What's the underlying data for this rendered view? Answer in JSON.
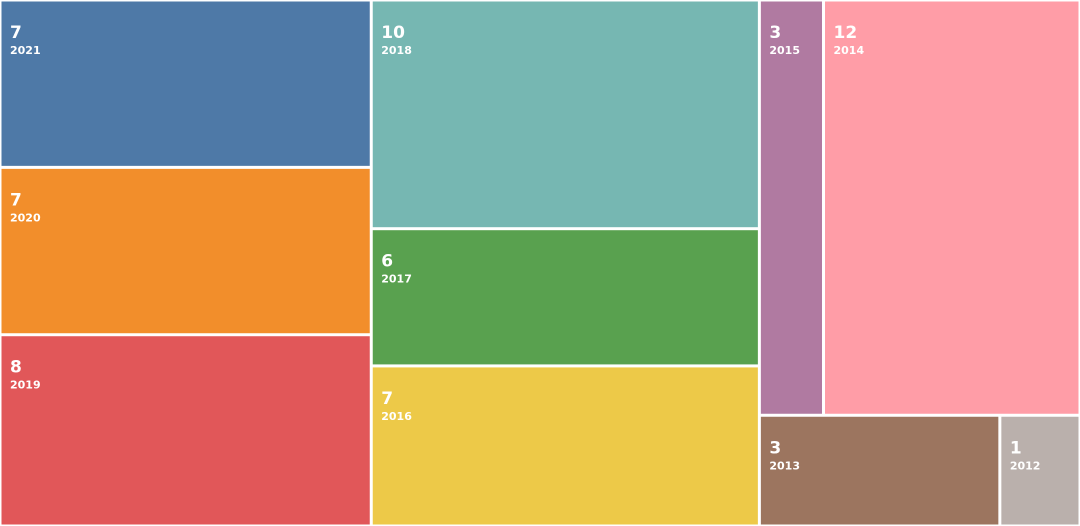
{
  "chart_data": {
    "type": "treemap",
    "categories": [
      "2021",
      "2020",
      "2019",
      "2018",
      "2017",
      "2016",
      "2015",
      "2014",
      "2013",
      "2012"
    ],
    "values": [
      7,
      7,
      8,
      10,
      6,
      7,
      3,
      12,
      3,
      1
    ],
    "colors": [
      "#4e79a7",
      "#f28e2b",
      "#e15759",
      "#76b7b2",
      "#59a14f",
      "#edc948",
      "#b07aa1",
      "#ff9da7",
      "#9c755f",
      "#bab0ac"
    ]
  }
}
